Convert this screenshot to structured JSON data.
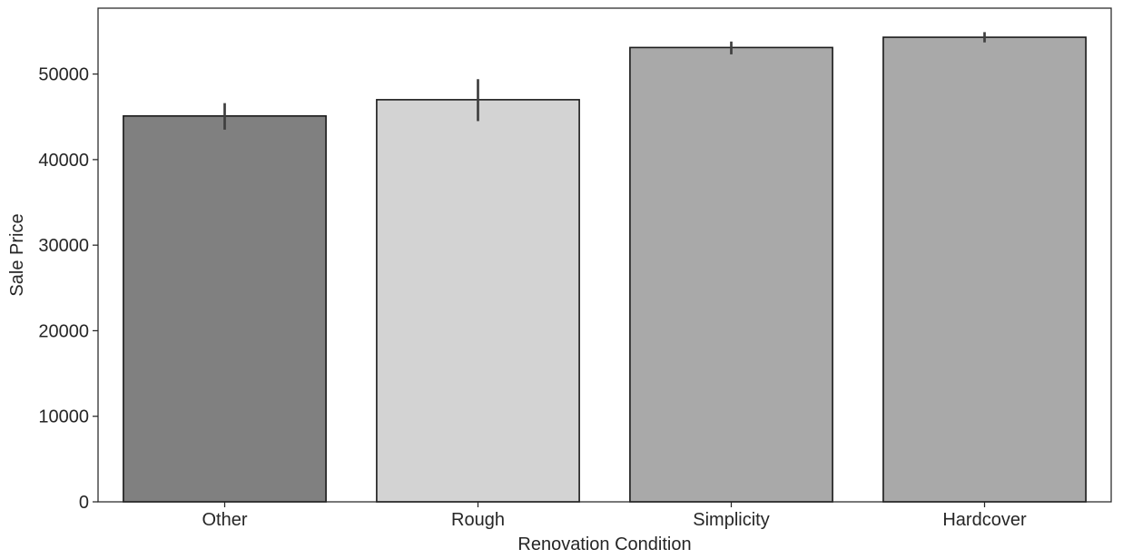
{
  "chart_data": {
    "type": "bar",
    "categories": [
      "Other",
      "Rough",
      "Simplicity",
      "Hardcover"
    ],
    "values": [
      45100,
      47000,
      53100,
      54300
    ],
    "error_low": [
      43500,
      44500,
      52300,
      53700
    ],
    "error_high": [
      46600,
      49400,
      53800,
      54900
    ],
    "bar_colors": [
      "#808080",
      "#d3d3d3",
      "#a9a9a9",
      "#a9a9a9"
    ],
    "bar_edge_color": "#1a1a1a",
    "error_bar_color": "#3f3f3f",
    "title": "",
    "xlabel": "Renovation Condition",
    "ylabel": "Sale Price",
    "ylim": [
      0,
      57700
    ],
    "yticks": [
      0,
      10000,
      20000,
      30000,
      40000,
      50000
    ],
    "ytick_labels": [
      "0",
      "10000",
      "20000",
      "30000",
      "40000",
      "50000"
    ],
    "grid": false,
    "legend": "none"
  }
}
